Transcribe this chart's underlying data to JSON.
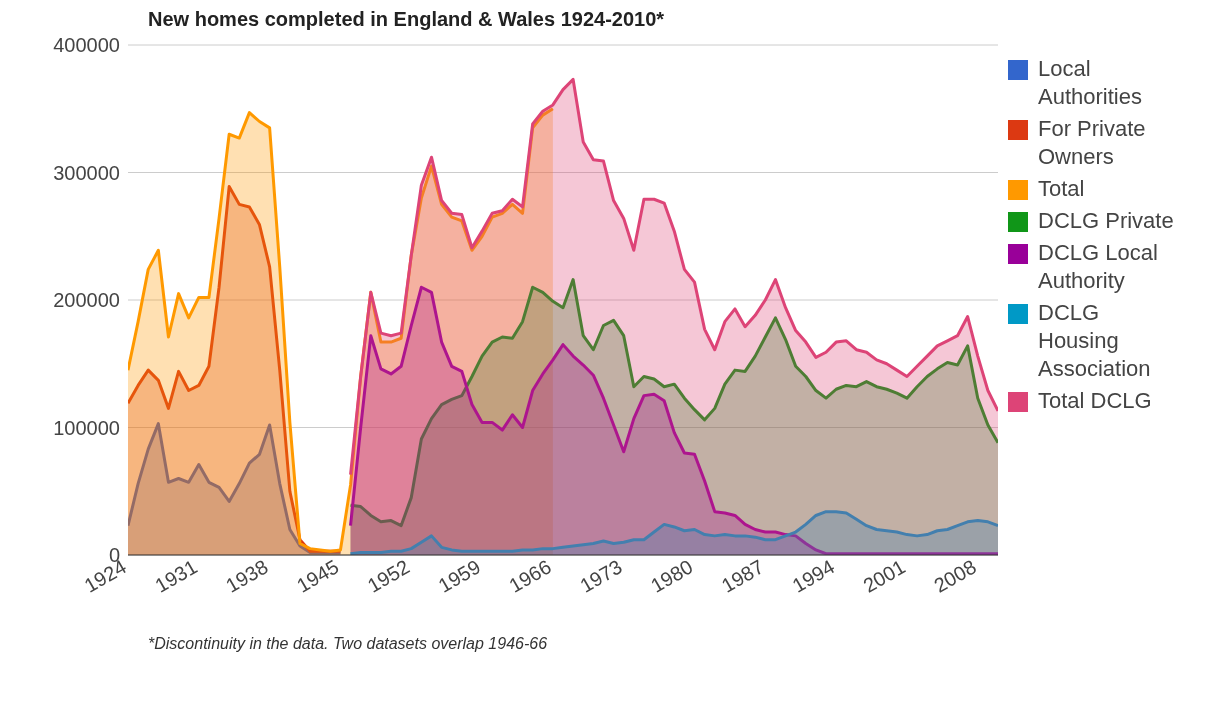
{
  "chart_data": {
    "type": "area",
    "title": "New homes completed in England & Wales 1924-2010*",
    "x": [
      1924,
      1925,
      1926,
      1927,
      1928,
      1929,
      1930,
      1931,
      1932,
      1933,
      1934,
      1935,
      1936,
      1937,
      1938,
      1939,
      1940,
      1941,
      1942,
      1943,
      1944,
      1945,
      1946,
      1947,
      1948,
      1949,
      1950,
      1951,
      1952,
      1953,
      1954,
      1955,
      1956,
      1957,
      1958,
      1959,
      1960,
      1961,
      1962,
      1963,
      1964,
      1965,
      1966,
      1967,
      1968,
      1969,
      1970,
      1971,
      1972,
      1973,
      1974,
      1975,
      1976,
      1977,
      1978,
      1979,
      1980,
      1981,
      1982,
      1983,
      1984,
      1985,
      1986,
      1987,
      1988,
      1989,
      1990,
      1991,
      1992,
      1993,
      1994,
      1995,
      1996,
      1997,
      1998,
      1999,
      2000,
      2001,
      2002,
      2003,
      2004,
      2005,
      2006,
      2007,
      2008,
      2009,
      2010
    ],
    "xlim": [
      1924,
      2010
    ],
    "xticks": [
      1924,
      1931,
      1938,
      1945,
      1952,
      1959,
      1966,
      1973,
      1980,
      1987,
      1994,
      2001,
      2008
    ],
    "ylim": [
      0,
      400000
    ],
    "yticks": [
      0,
      100000,
      200000,
      300000,
      400000
    ],
    "grid": "y",
    "legend": "right",
    "annotations": [
      "*Discontinuity in the data. Two datasets overlap 1946-66"
    ],
    "series": [
      {
        "name": "Local Authorities",
        "color": "#3366cc",
        "values": [
          23000,
          56000,
          83000,
          103000,
          57000,
          60000,
          57000,
          71000,
          57000,
          53000,
          42000,
          56000,
          72000,
          79000,
          102000,
          56000,
          20000,
          7000,
          2000,
          2000,
          2000,
          2000,
          null,
          null,
          null,
          null,
          null,
          null,
          null,
          null,
          null,
          null,
          null,
          null,
          null,
          null,
          null,
          null,
          null,
          null,
          null,
          null,
          null,
          null,
          null,
          null,
          null,
          null,
          null,
          null,
          null,
          null,
          null,
          null,
          null,
          null,
          null,
          null,
          null,
          null,
          null,
          null,
          null,
          null,
          null,
          null,
          null,
          null,
          null,
          null,
          null,
          null,
          null,
          null,
          null,
          null,
          null,
          null,
          null,
          null,
          null,
          null,
          null,
          null,
          null,
          null,
          null
        ]
      },
      {
        "name": "For Private Owners",
        "color": "#dc3912",
        "values": [
          119000,
          133000,
          145000,
          137000,
          115000,
          144000,
          129000,
          133000,
          148000,
          210000,
          289000,
          275000,
          273000,
          259000,
          226000,
          145000,
          50000,
          12000,
          3000,
          3000,
          3000,
          3000,
          null,
          null,
          null,
          null,
          null,
          null,
          null,
          null,
          null,
          null,
          null,
          null,
          null,
          null,
          null,
          null,
          null,
          null,
          null,
          null,
          null,
          null,
          null,
          null,
          null,
          null,
          null,
          null,
          null,
          null,
          null,
          null,
          null,
          null,
          null,
          null,
          null,
          null,
          null,
          null,
          null,
          null,
          null,
          null,
          null,
          null,
          null,
          null,
          null,
          null,
          null,
          null,
          null,
          null,
          null,
          null,
          null,
          null,
          null,
          null,
          null,
          null,
          null,
          null,
          null
        ]
      },
      {
        "name": "Total",
        "color": "#ff9900",
        "values": [
          145000,
          183000,
          224000,
          239000,
          171000,
          205000,
          186000,
          202000,
          202000,
          264000,
          330000,
          327000,
          347000,
          340000,
          335000,
          226000,
          104000,
          9000,
          5000,
          4000,
          3000,
          4000,
          55000,
          140000,
          206000,
          167000,
          167000,
          170000,
          235000,
          280000,
          305000,
          275000,
          265000,
          262000,
          239000,
          250000,
          265000,
          268000,
          275000,
          268000,
          335000,
          345000,
          350000,
          null,
          null,
          null,
          null,
          null,
          null,
          null,
          null,
          null,
          null,
          null,
          null,
          null,
          null,
          null,
          null,
          null,
          null,
          null,
          null,
          null,
          null,
          null,
          null,
          null,
          null,
          null,
          null,
          null,
          null,
          null,
          null,
          null,
          null,
          null,
          null,
          null,
          null,
          null,
          null,
          null,
          null,
          null,
          null
        ]
      },
      {
        "name": "DCLG Private",
        "color": "#109618",
        "values": [
          null,
          null,
          null,
          null,
          null,
          null,
          null,
          null,
          null,
          null,
          null,
          null,
          null,
          null,
          null,
          null,
          null,
          null,
          null,
          null,
          null,
          null,
          39000,
          38000,
          31000,
          26000,
          27000,
          23000,
          45000,
          91000,
          107000,
          118000,
          122000,
          125000,
          140000,
          156000,
          167000,
          171000,
          170000,
          183000,
          210000,
          206000,
          199000,
          194000,
          216000,
          172000,
          161000,
          180000,
          184000,
          172000,
          132000,
          140000,
          138000,
          132000,
          134000,
          123000,
          114000,
          106000,
          115000,
          134000,
          145000,
          144000,
          156000,
          171000,
          186000,
          169000,
          148000,
          140000,
          129000,
          123000,
          130000,
          133000,
          132000,
          136000,
          132000,
          130000,
          127000,
          123000,
          132000,
          140000,
          146000,
          151000,
          149000,
          164000,
          123000,
          102000,
          88000
        ]
      },
      {
        "name": "DCLG Local Authority",
        "color": "#990099",
        "values": [
          null,
          null,
          null,
          null,
          null,
          null,
          null,
          null,
          null,
          null,
          null,
          null,
          null,
          null,
          null,
          null,
          null,
          null,
          null,
          null,
          null,
          null,
          23000,
          100000,
          172000,
          146000,
          142000,
          148000,
          180000,
          210000,
          206000,
          167000,
          148000,
          144000,
          118000,
          104000,
          104000,
          98000,
          110000,
          100000,
          129000,
          142000,
          153000,
          165000,
          156000,
          149000,
          141000,
          123000,
          102000,
          81000,
          107000,
          125000,
          126000,
          121000,
          96000,
          80000,
          79000,
          58000,
          34000,
          33000,
          31000,
          24000,
          20000,
          18000,
          18000,
          16000,
          15000,
          9000,
          4000,
          1000,
          1000,
          1000,
          1000,
          1000,
          1000,
          1000,
          1000,
          1000,
          1000,
          1000,
          1000,
          1000,
          1000,
          1000,
          1000,
          1000,
          1000
        ]
      },
      {
        "name": "DCLG Housing Association",
        "color": "#0099c6",
        "values": [
          null,
          null,
          null,
          null,
          null,
          null,
          null,
          null,
          null,
          null,
          null,
          null,
          null,
          null,
          null,
          null,
          null,
          null,
          null,
          null,
          null,
          null,
          1000,
          2000,
          2000,
          2000,
          3000,
          3000,
          5000,
          10000,
          15000,
          6000,
          4000,
          3000,
          3000,
          3000,
          3000,
          3000,
          3000,
          4000,
          4000,
          5000,
          5000,
          6000,
          7000,
          8000,
          9000,
          11000,
          9000,
          10000,
          12000,
          12000,
          18000,
          24000,
          22000,
          19000,
          20000,
          16000,
          15000,
          16000,
          15000,
          15000,
          14000,
          12000,
          12000,
          15000,
          18000,
          24000,
          31000,
          34000,
          34000,
          33000,
          28000,
          23000,
          20000,
          19000,
          18000,
          16000,
          15000,
          16000,
          19000,
          20000,
          23000,
          26000,
          27000,
          26000,
          23000
        ]
      },
      {
        "name": "Total DCLG",
        "color": "#dd4477",
        "values": [
          null,
          null,
          null,
          null,
          null,
          null,
          null,
          null,
          null,
          null,
          null,
          null,
          null,
          null,
          null,
          null,
          null,
          null,
          null,
          null,
          null,
          null,
          63000,
          140000,
          206000,
          174000,
          172000,
          174000,
          235000,
          290000,
          312000,
          278000,
          268000,
          267000,
          241000,
          254000,
          268000,
          270000,
          279000,
          273000,
          338000,
          348000,
          353000,
          365000,
          373000,
          324000,
          310000,
          309000,
          278000,
          264000,
          239000,
          279000,
          279000,
          276000,
          254000,
          224000,
          214000,
          177000,
          161000,
          183000,
          193000,
          179000,
          188000,
          200000,
          216000,
          194000,
          176000,
          167000,
          155000,
          159000,
          167000,
          168000,
          161000,
          159000,
          153000,
          150000,
          145000,
          140000,
          148000,
          156000,
          164000,
          168000,
          172000,
          187000,
          156000,
          129000,
          113000
        ]
      }
    ]
  }
}
